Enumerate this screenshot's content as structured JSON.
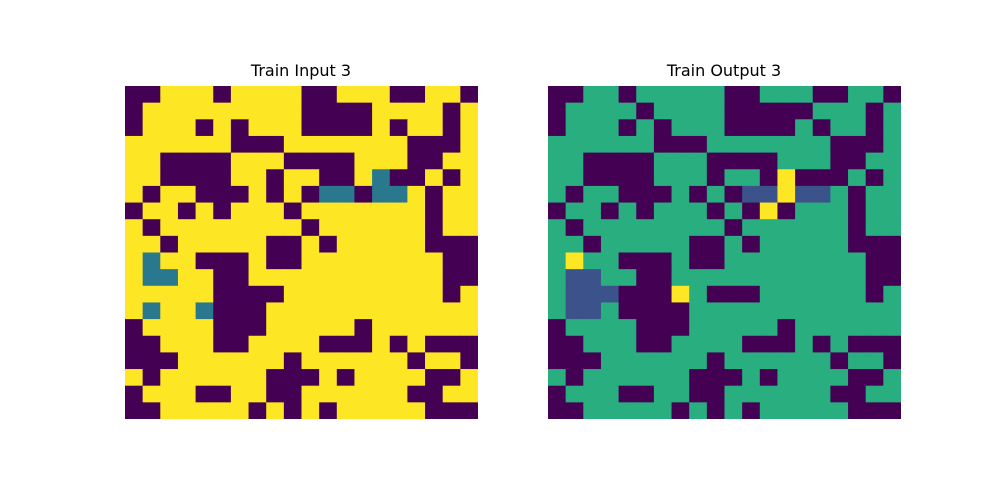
{
  "palette": {
    "0": "#440154",
    "1": "#fde725",
    "2": "#2a788e",
    "3": "#29af7f",
    "4": "#3b528b"
  },
  "panels": {
    "input": {
      "title": "Train Input 3",
      "grid": [
        "00111011110011100110",
        "01111111110000111101",
        "01110101110000101101",
        "11111100011111110001",
        "11000011100001110011",
        "11000011011001200101",
        "10110001010220221011",
        "01101011101111111011",
        "10111111110111111011",
        "11011111001011111000",
        "12110001001111111100",
        "12211001111111111100",
        "11111000011111111101",
        "12112000111111111111",
        "01111000111110111111",
        "00111001111000101000",
        "00011111101111110110",
        "10111111000101111001",
        "01110011001111110011",
        "00111110101011111000"
      ]
    },
    "output": {
      "title": "Train Output 3",
      "grid": [
        "00330333330033300330",
        "03333033330000033303",
        "03330303330000303303",
        "33333300033333330003",
        "33000033300003330033",
        "33000033303301000303",
        "30330003030441443033",
        "03303033303010333033",
        "30333333330333333033",
        "33033333003033333000",
        "31330003003333333300",
        "34433003333333333300",
        "34440001300033333303",
        "34430000333333333333",
        "03333000333330333333",
        "00333003333000303000",
        "00033333303333330330",
        "30333333000303333003",
        "03330033003333330033",
        "00333330303033333000"
      ]
    }
  }
}
